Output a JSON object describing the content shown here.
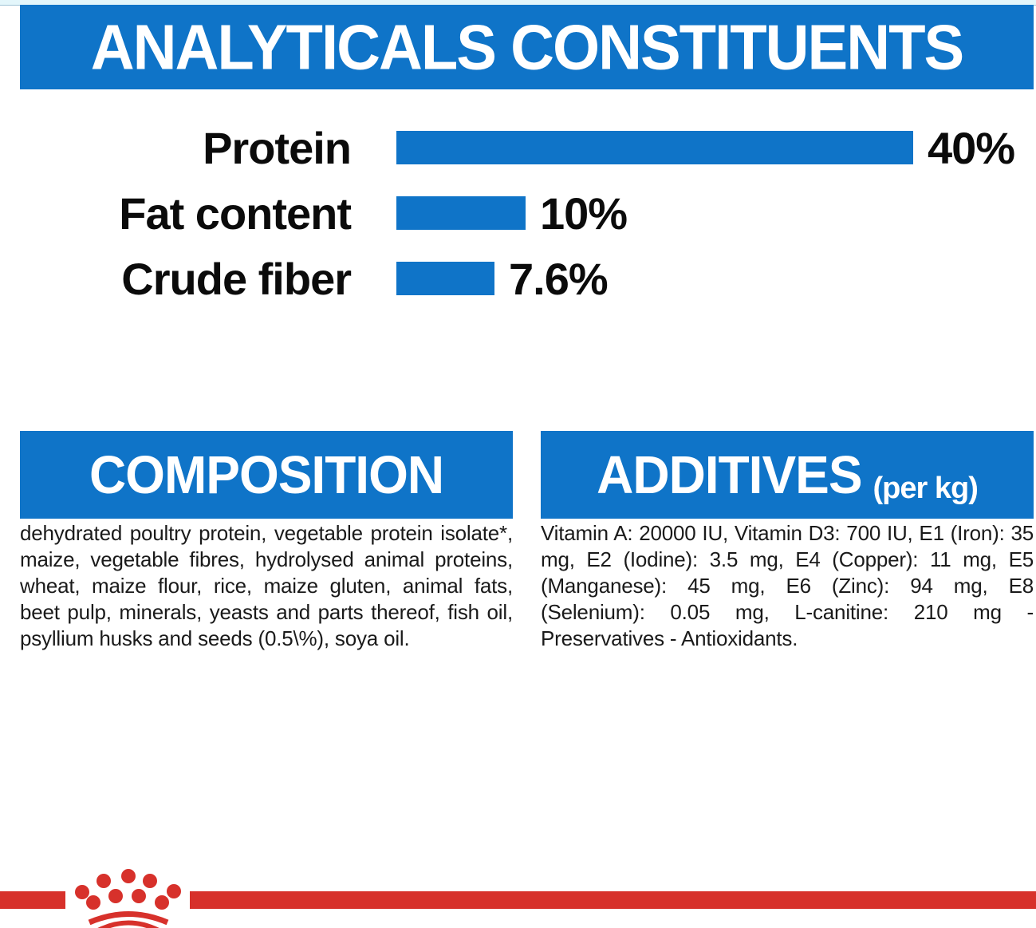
{
  "header": {
    "title": "ANALYTICALS CONSTITUENTS"
  },
  "chart_data": {
    "type": "bar",
    "orientation": "horizontal",
    "title": "ANALYTICALS CONSTITUENTS",
    "categories": [
      "Protein",
      "Fat content",
      "Crude fiber"
    ],
    "values": [
      40,
      10,
      7.6
    ],
    "value_labels": [
      "40%",
      "10%",
      "7.6%"
    ],
    "xlim": [
      0,
      40
    ],
    "grid": false,
    "legend": false,
    "bar_color": "#0f74c8",
    "label_color": "#0b0b0b"
  },
  "sections": {
    "composition": {
      "title": "COMPOSITION",
      "body": "dehydrated poultry protein, vegetable protein isolate*, maize, vegetable fibres, hydrolysed animal proteins, wheat, maize flour, rice, maize gluten, animal fats, beet pulp, minerals, yeasts and parts thereof, fish oil, psyllium husks and seeds (0.5\\%), soya oil."
    },
    "additives": {
      "title": "ADDITIVES",
      "title_suffix": "(per kg)",
      "body": "Vitamin A: 20000 IU, Vitamin D3: 700 IU, E1 (Iron): 35 mg, E2 (Iodine): 3.5 mg, E4 (Copper): 11 mg, E5 (Manganese): 45 mg, E6 (Zinc): 94 mg, E8 (Selenium): 0.05 mg, L-canitine: 210 mg - Preservatives - Antioxidants."
    }
  },
  "footer": {
    "logo": "royal-canin-crown"
  },
  "colors": {
    "accent_blue": "#0f74c8",
    "brand_red": "#d7312b",
    "top_strip": "#e3f6fb"
  }
}
